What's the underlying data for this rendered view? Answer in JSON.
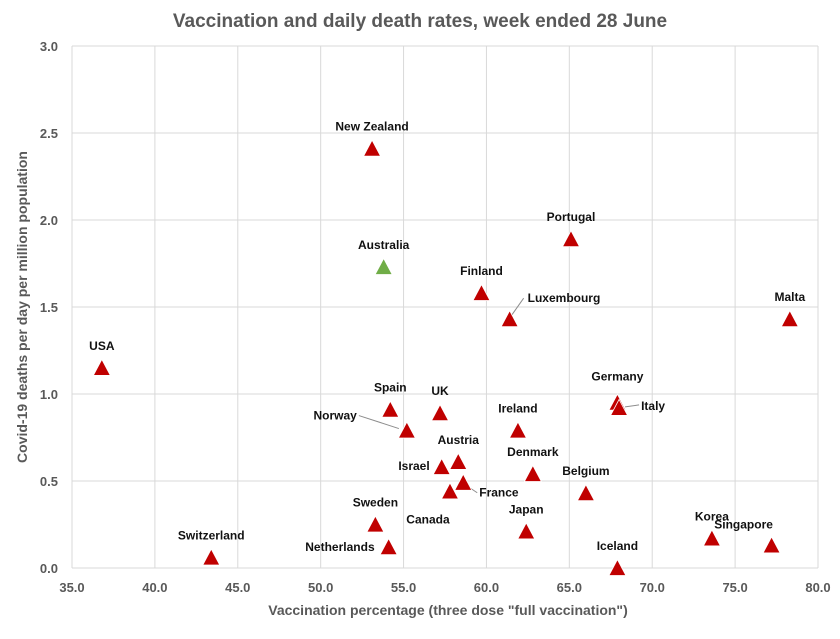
{
  "chart_data": {
    "type": "scatter",
    "title": "Vaccination and daily death rates, week ended 28 June",
    "xlabel": "Vaccination percentage (three dose \"full vaccination\")",
    "ylabel": "Covid-19 deaths per day per million population",
    "xlim": [
      35.0,
      80.0
    ],
    "ylim": [
      0.0,
      3.0
    ],
    "x_ticks": [
      "35.0",
      "40.0",
      "45.0",
      "50.0",
      "55.0",
      "60.0",
      "65.0",
      "70.0",
      "75.0",
      "80.0"
    ],
    "y_ticks": [
      "0.0",
      "0.5",
      "1.0",
      "1.5",
      "2.0",
      "2.5",
      "3.0"
    ],
    "grid": true,
    "colors": {
      "default": "#c00000",
      "highlight": "#70ad47",
      "highlight_label": "#548235"
    },
    "points": [
      {
        "label": "USA",
        "x": 36.8,
        "y": 1.15,
        "highlight": false
      },
      {
        "label": "Switzerland",
        "x": 43.4,
        "y": 0.06,
        "highlight": false
      },
      {
        "label": "New Zealand",
        "x": 53.1,
        "y": 2.41,
        "highlight": false
      },
      {
        "label": "Australia",
        "x": 53.8,
        "y": 1.73,
        "highlight": true
      },
      {
        "label": "Sweden",
        "x": 53.3,
        "y": 0.25,
        "highlight": false
      },
      {
        "label": "Netherlands",
        "x": 54.1,
        "y": 0.12,
        "highlight": false
      },
      {
        "label": "Spain",
        "x": 54.2,
        "y": 0.91,
        "highlight": false
      },
      {
        "label": "Norway",
        "x": 55.2,
        "y": 0.79,
        "highlight": false
      },
      {
        "label": "UK",
        "x": 57.2,
        "y": 0.89,
        "highlight": false
      },
      {
        "label": "Israel",
        "x": 57.3,
        "y": 0.58,
        "highlight": false
      },
      {
        "label": "Canada",
        "x": 57.8,
        "y": 0.44,
        "highlight": false
      },
      {
        "label": "Austria",
        "x": 58.3,
        "y": 0.61,
        "highlight": false
      },
      {
        "label": "France",
        "x": 58.6,
        "y": 0.49,
        "highlight": false
      },
      {
        "label": "Finland",
        "x": 59.7,
        "y": 1.58,
        "highlight": false
      },
      {
        "label": "Luxembourg",
        "x": 61.4,
        "y": 1.43,
        "highlight": false
      },
      {
        "label": "Ireland",
        "x": 61.9,
        "y": 0.79,
        "highlight": false
      },
      {
        "label": "Japan",
        "x": 62.4,
        "y": 0.21,
        "highlight": false
      },
      {
        "label": "Denmark",
        "x": 62.8,
        "y": 0.54,
        "highlight": false
      },
      {
        "label": "Portugal",
        "x": 65.1,
        "y": 1.89,
        "highlight": false
      },
      {
        "label": "Belgium",
        "x": 66.0,
        "y": 0.43,
        "highlight": false
      },
      {
        "label": "Germany",
        "x": 67.9,
        "y": 0.95,
        "highlight": false
      },
      {
        "label": "Italy",
        "x": 68.0,
        "y": 0.92,
        "highlight": false
      },
      {
        "label": "Iceland",
        "x": 67.9,
        "y": 0.0,
        "highlight": false
      },
      {
        "label": "Korea",
        "x": 73.6,
        "y": 0.17,
        "highlight": false
      },
      {
        "label": "Singapore",
        "x": 77.2,
        "y": 0.13,
        "highlight": false
      },
      {
        "label": "Malta",
        "x": 78.3,
        "y": 1.43,
        "highlight": false
      }
    ]
  }
}
